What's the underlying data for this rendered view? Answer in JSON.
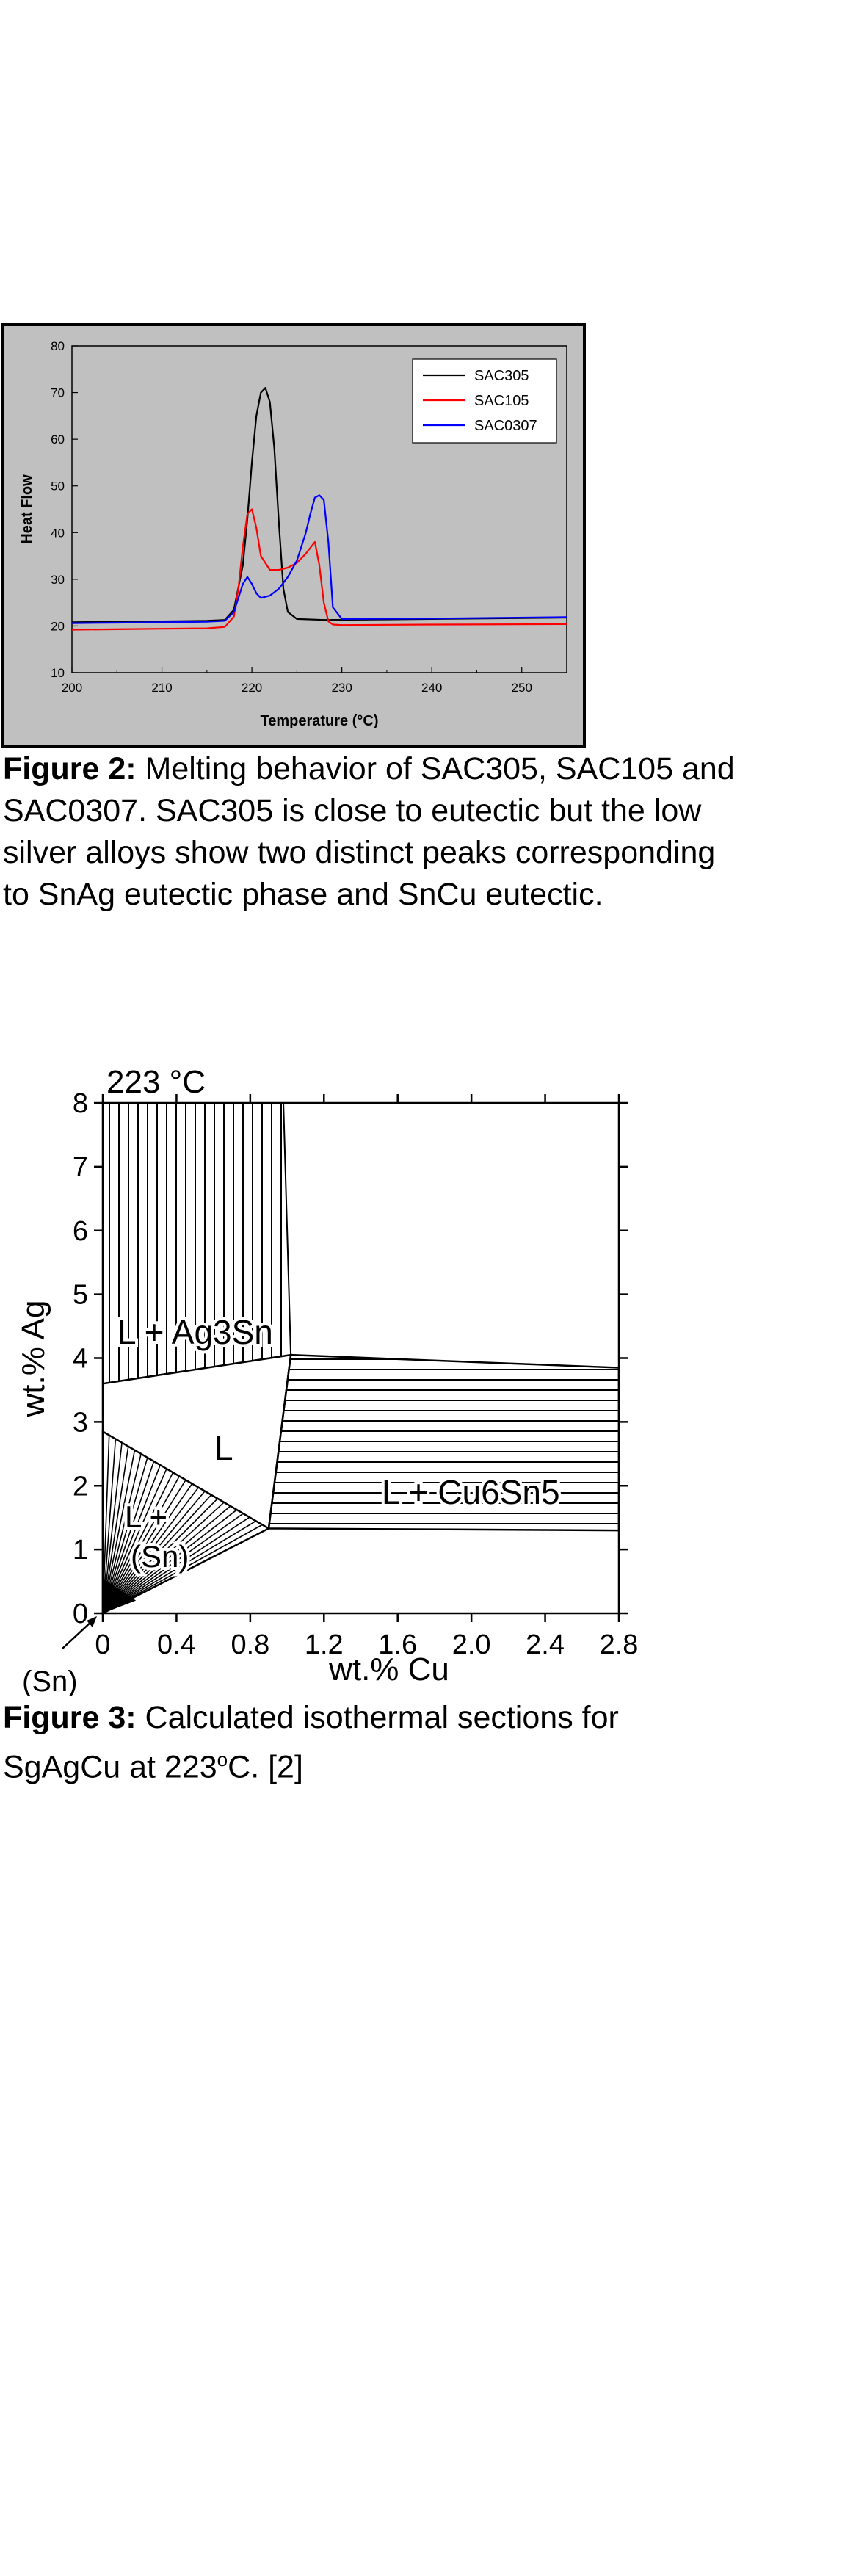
{
  "figure2": {
    "chart_data": {
      "type": "line",
      "xlabel": "Temperature (°C)",
      "ylabel": "Heat Flow",
      "xlim": [
        200,
        255
      ],
      "ylim": [
        10,
        80
      ],
      "xticks": [
        200,
        210,
        220,
        230,
        240,
        250
      ],
      "yticks": [
        10,
        20,
        30,
        40,
        50,
        60,
        70,
        80
      ],
      "legend_position": "top-right",
      "series": [
        {
          "name": "SAC305",
          "color": "#000000",
          "x": [
            200,
            205,
            210,
            215,
            217,
            218,
            219,
            219.5,
            220,
            220.5,
            221,
            221.5,
            222,
            222.5,
            223,
            223.5,
            224,
            225,
            228,
            235,
            245,
            255
          ],
          "y": [
            20.8,
            20.9,
            21.0,
            21.1,
            21.3,
            23.5,
            33,
            43,
            55,
            65,
            70,
            71,
            68,
            58,
            42,
            28,
            23,
            21.5,
            21.3,
            21.4,
            21.6,
            21.8
          ]
        },
        {
          "name": "SAC105",
          "color": "#ff0000",
          "x": [
            200,
            205,
            210,
            215,
            217,
            218,
            218.5,
            219,
            219.5,
            220,
            220.5,
            221,
            222,
            223,
            224,
            225,
            226,
            227,
            227.5,
            228,
            228.5,
            229,
            230,
            240,
            255
          ],
          "y": [
            19.2,
            19.3,
            19.4,
            19.5,
            19.8,
            22,
            28,
            37,
            44,
            45,
            41,
            35,
            32,
            32,
            32.5,
            33.5,
            35.5,
            38,
            33,
            25,
            21,
            20.3,
            20.2,
            20.3,
            20.4
          ]
        },
        {
          "name": "SAC0307",
          "color": "#0000ff",
          "x": [
            200,
            205,
            210,
            215,
            217,
            218,
            218.5,
            219,
            219.5,
            220,
            220.5,
            221,
            222,
            223,
            224,
            225,
            226,
            226.5,
            227,
            227.5,
            228,
            228.5,
            229,
            230,
            240,
            255
          ],
          "y": [
            20.6,
            20.7,
            20.8,
            20.9,
            21.1,
            23,
            26,
            29,
            30.5,
            29,
            27,
            26,
            26.5,
            28,
            30.5,
            34,
            40,
            44,
            47.5,
            48,
            47,
            38,
            24,
            21.5,
            21.6,
            21.9
          ]
        }
      ]
    }
  },
  "caption2": {
    "label": "Figure 2:",
    "text": "  Melting behavior of SAC305, SAC105 and SAC0307.  SAC305 is close to eutectic but the low silver alloys show two distinct peaks corresponding to SnAg eutectic phase and SnCu eutectic."
  },
  "figure3": {
    "title": "223 °C",
    "ylabel": "wt.% Ag",
    "xlabel": "wt.% Cu",
    "xticks": [
      "0",
      "0.4",
      "0.8",
      "1.2",
      "1.6",
      "2.0",
      "2.4",
      "2.8"
    ],
    "yticks": [
      "0",
      "1",
      "2",
      "3",
      "4",
      "5",
      "6",
      "7",
      "8"
    ],
    "origin_label": "(Sn)",
    "region_labels": {
      "liquid": "L",
      "l_ag3sn": "L + Ag3Sn",
      "l_sn_a": "L +",
      "l_sn_b": "(Sn)",
      "l_cu6sn5": "L + Cu6Sn5"
    }
  },
  "caption3": {
    "label": "Figure 3:",
    "text_a": "  Calculated isothermal sections for SgAgCu at 223",
    "text_sup": "o",
    "text_b": "C.  [2]"
  }
}
